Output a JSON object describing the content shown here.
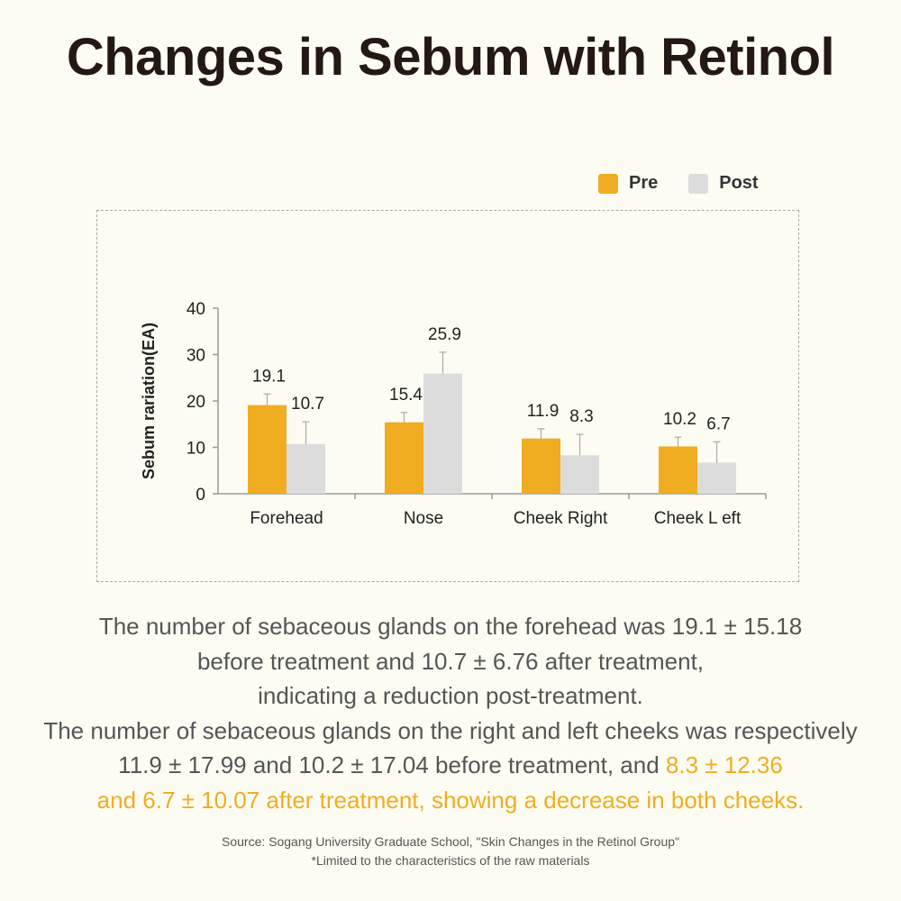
{
  "title": "Changes in Sebum with Retinol",
  "legend": [
    {
      "label": "Pre",
      "color": "#f0ad21"
    },
    {
      "label": "Post",
      "color": "#dcdcdc"
    }
  ],
  "chart_data": {
    "type": "bar",
    "ylabel": "Sebum rariation(EA)",
    "ylim": [
      0,
      40
    ],
    "yticks": [
      0,
      10,
      20,
      30,
      40
    ],
    "categories": [
      "Forehead",
      "Nose",
      "Cheek Right",
      "Cheek L eft"
    ],
    "series": [
      {
        "name": "Pre",
        "color": "#f0ad21",
        "values": [
          19.1,
          15.4,
          11.9,
          10.2
        ],
        "labels": [
          "19.1",
          "15.4",
          "11.9",
          "10.2"
        ],
        "error_top": [
          21.5,
          17.5,
          14.0,
          12.2
        ]
      },
      {
        "name": "Post",
        "color": "#dcdcdc",
        "values": [
          10.7,
          25.9,
          8.3,
          6.7
        ],
        "labels": [
          "10.7",
          "25.9",
          "8.3",
          "6.7"
        ],
        "error_top": [
          15.5,
          30.5,
          12.8,
          11.2
        ]
      }
    ],
    "grid": false,
    "legend_position": "top-right"
  },
  "description": {
    "line1": "The number of sebaceous glands on the forehead was 19.1 ± 15.18",
    "line2": "before treatment and 10.7 ± 6.76 after treatment,",
    "line3": "indicating a reduction post-treatment.",
    "line4": "The number of sebaceous glands on the right and left cheeks was respectively",
    "line5_plain": "11.9 ± 17.99 and 10.2 ± 17.04 before treatment, and ",
    "line5_highlight": "8.3 ± 12.36",
    "line6_highlight": "and 6.7 ± 10.07 after treatment, showing a decrease in both cheeks."
  },
  "source": {
    "line1": "Source: Sogang University Graduate School, \"Skin Changes in the Retinol Group\"",
    "line2": "*Limited to the characteristics of the raw materials"
  }
}
